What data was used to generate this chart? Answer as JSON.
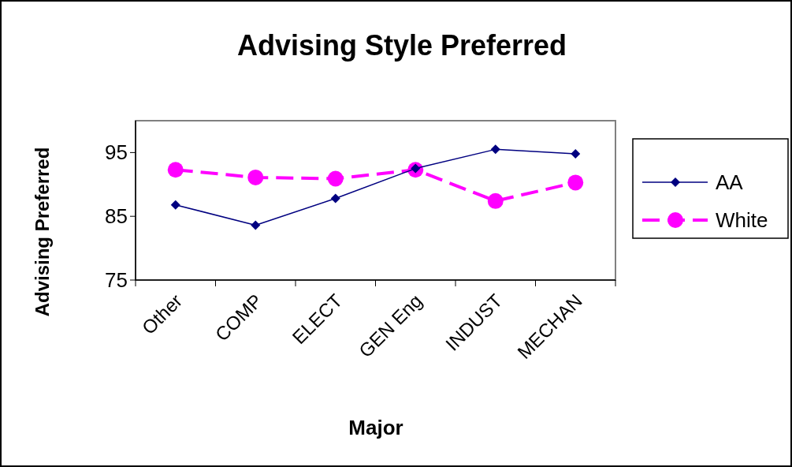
{
  "chart_data": {
    "type": "line",
    "title": "Advising Style Preferred",
    "xlabel": "Major",
    "ylabel": "Advising Preferred",
    "categories": [
      "Other",
      "COMP",
      "ELECT",
      "GEN Eng",
      "INDUST",
      "MECHAN"
    ],
    "series": [
      {
        "name": "AA",
        "color": "#000080",
        "marker": "diamond",
        "line_style": "solid",
        "values": [
          86.8,
          83.6,
          87.8,
          92.5,
          95.5,
          94.8
        ]
      },
      {
        "name": "White",
        "color": "#ff00ff",
        "marker": "circle",
        "line_style": "dashed",
        "values": [
          92.3,
          91.1,
          90.9,
          92.3,
          87.4,
          90.3
        ]
      }
    ],
    "ylim": [
      75,
      100
    ],
    "yticks": [
      75,
      85,
      95
    ],
    "grid": false,
    "legend": "right"
  }
}
